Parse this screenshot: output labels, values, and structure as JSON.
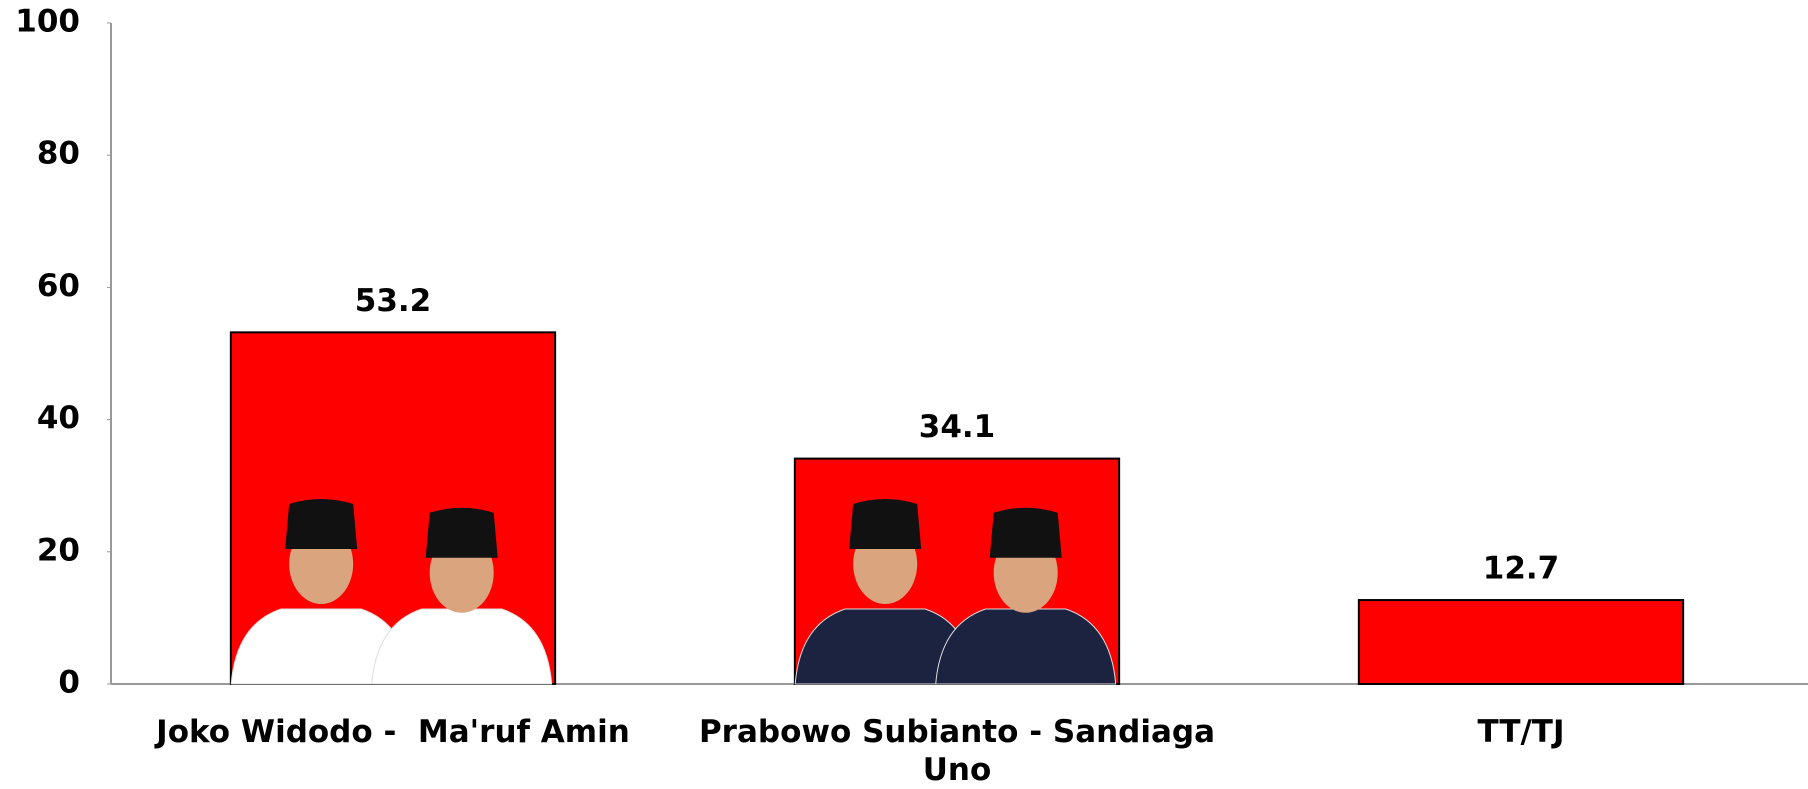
{
  "chart_data": {
    "type": "bar",
    "categories": [
      "Joko Widodo -  Ma'ruf Amin",
      "Prabowo Subianto - Sandiaga Uno",
      "TT/TJ"
    ],
    "values": [
      53.2,
      34.1,
      12.7
    ],
    "color": "#ff0000",
    "ylim": [
      0,
      100
    ],
    "yticks": [
      0,
      20,
      40,
      60,
      80,
      100
    ],
    "grid": false
  }
}
